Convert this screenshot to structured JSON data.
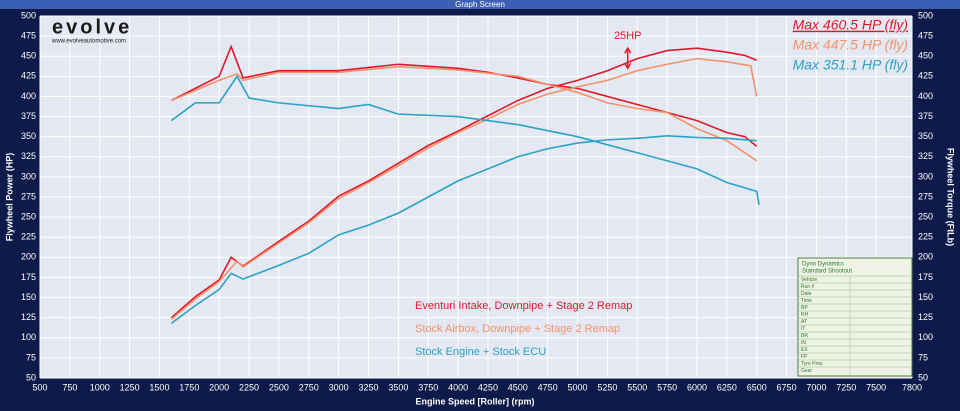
{
  "chart_data": {
    "type": "line",
    "window_title": "Graph Screen",
    "logo": "evolve",
    "logo_url": "www.evolveautomotive.com",
    "x_label": "Engine Speed [Roller] (rpm)",
    "y_label": "Flywheel Power (HP)",
    "y2_label": "Flywheel Torque (FtLb)",
    "xlim": [
      500,
      7800
    ],
    "xticks": [
      500,
      750,
      1000,
      1250,
      1500,
      1750,
      2000,
      2250,
      2500,
      2750,
      3000,
      3250,
      3500,
      3750,
      4000,
      4250,
      4500,
      4750,
      5000,
      5250,
      5500,
      5750,
      6000,
      6250,
      6500,
      6750,
      7000,
      7250,
      7500,
      7800
    ],
    "ylim": [
      50,
      500
    ],
    "yticks": [
      50,
      75,
      100,
      125,
      150,
      175,
      200,
      225,
      250,
      275,
      300,
      325,
      350,
      375,
      400,
      425,
      450,
      475,
      500
    ],
    "y2lim": [
      50,
      500
    ],
    "y2ticks": [
      50,
      75,
      100,
      125,
      150,
      175,
      200,
      225,
      250,
      275,
      300,
      325,
      350,
      375,
      400,
      425,
      450,
      475,
      500
    ],
    "grid": true,
    "series": [
      {
        "name": "Eventuri Intake, Downpipe + Stage 2 Remap",
        "color": "#e0192a",
        "max_label": "Max 460.5 HP (fly)",
        "x": [
          1600,
          1800,
          2000,
          2100,
          2200,
          2500,
          2750,
          3000,
          3250,
          3500,
          3750,
          4000,
          4250,
          4500,
          4750,
          5000,
          5250,
          5500,
          5750,
          6000,
          6250,
          6400,
          6500
        ],
        "values": [
          125,
          151,
          172,
          200,
          189,
          220,
          245,
          276,
          295,
          317,
          339,
          357,
          376,
          395,
          410,
          420,
          432,
          447,
          457,
          460,
          455,
          451,
          445
        ],
        "torque_x": [
          1600,
          1800,
          2000,
          2100,
          2200,
          2500,
          3000,
          3500,
          4000,
          4250,
          4500,
          4750,
          5000,
          5250,
          5500,
          5750,
          6000,
          6250,
          6400,
          6500
        ],
        "torque": [
          395,
          410,
          425,
          462,
          423,
          432,
          432,
          440,
          435,
          430,
          423,
          415,
          410,
          400,
          390,
          380,
          370,
          355,
          350,
          338
        ]
      },
      {
        "name": "Stock Airbox, Downpipe + Stage 2 Remap",
        "color": "#f4926a",
        "max_label": "Max 447.5 HP (fly)",
        "x": [
          1600,
          1800,
          2000,
          2150,
          2200,
          2500,
          2750,
          3000,
          3250,
          3500,
          3750,
          4000,
          4250,
          4500,
          4750,
          5000,
          5250,
          5500,
          5750,
          6000,
          6250,
          6450,
          6500
        ],
        "values": [
          123,
          148,
          170,
          195,
          188,
          218,
          243,
          273,
          293,
          314,
          336,
          355,
          372,
          390,
          403,
          412,
          420,
          432,
          440,
          447,
          443,
          438,
          400
        ],
        "torque_x": [
          1600,
          2000,
          2150,
          2200,
          2500,
          3000,
          3500,
          4000,
          4500,
          4750,
          5000,
          5250,
          5500,
          5750,
          6000,
          6250,
          6500
        ],
        "torque": [
          395,
          420,
          428,
          420,
          430,
          430,
          437,
          433,
          425,
          415,
          405,
          392,
          385,
          380,
          360,
          345,
          320
        ]
      },
      {
        "name": "Stock Engine + Stock ECU",
        "color": "#2aa3c4",
        "max_label": "Max 351.1 HP (fly)",
        "x": [
          1600,
          1800,
          2000,
          2100,
          2200,
          2500,
          2750,
          3000,
          3250,
          3500,
          3750,
          4000,
          4250,
          4500,
          4750,
          5000,
          5250,
          5500,
          5750,
          6000,
          6250,
          6500
        ],
        "values": [
          118,
          140,
          160,
          180,
          173,
          190,
          205,
          228,
          240,
          255,
          275,
          295,
          310,
          325,
          335,
          342,
          346,
          348,
          351,
          349,
          348,
          345
        ],
        "torque_x": [
          1600,
          1800,
          2000,
          2150,
          2250,
          2500,
          3000,
          3250,
          3500,
          4000,
          4500,
          5000,
          5500,
          6000,
          6250,
          6500,
          6520
        ],
        "torque": [
          370,
          392,
          392,
          425,
          398,
          392,
          385,
          390,
          378,
          375,
          365,
          350,
          330,
          310,
          293,
          282,
          265
        ]
      }
    ],
    "annotation": {
      "text": "25HP",
      "x": 5420,
      "from": 435,
      "to": 460
    },
    "info_box": {
      "title": [
        "Dyno Dynamics",
        "Standard Shootout"
      ],
      "fields": [
        "Vehicle",
        "Run #",
        "Date",
        "Time",
        "BP",
        "RH",
        "AT",
        "IT",
        "BR",
        "IN",
        "EX",
        "FP",
        "Tyre Pres",
        "Gear"
      ]
    }
  }
}
